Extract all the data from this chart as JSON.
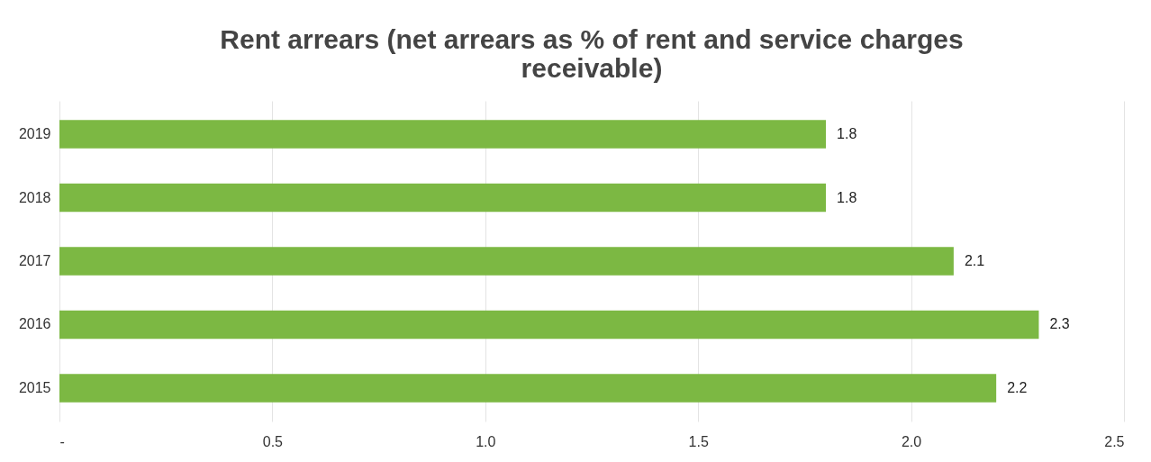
{
  "chart_data": {
    "type": "bar",
    "orientation": "horizontal",
    "title": [
      "Rent arrears (net arrears as % of rent and service charges",
      "receivable)"
    ],
    "categories": [
      "2019",
      "2018",
      "2017",
      "2016",
      "2015"
    ],
    "values": [
      1.8,
      1.8,
      2.1,
      2.3,
      2.2
    ],
    "color": "#7cb843",
    "xlim": [
      0,
      2.5
    ],
    "xticks": [
      {
        "value": 0,
        "label": "-"
      },
      0.5,
      {
        "value": 1,
        "label": "1.0"
      },
      1.5,
      {
        "value": 2,
        "label": "2.0"
      },
      2.5
    ],
    "grid": "x",
    "data_labels": true
  }
}
